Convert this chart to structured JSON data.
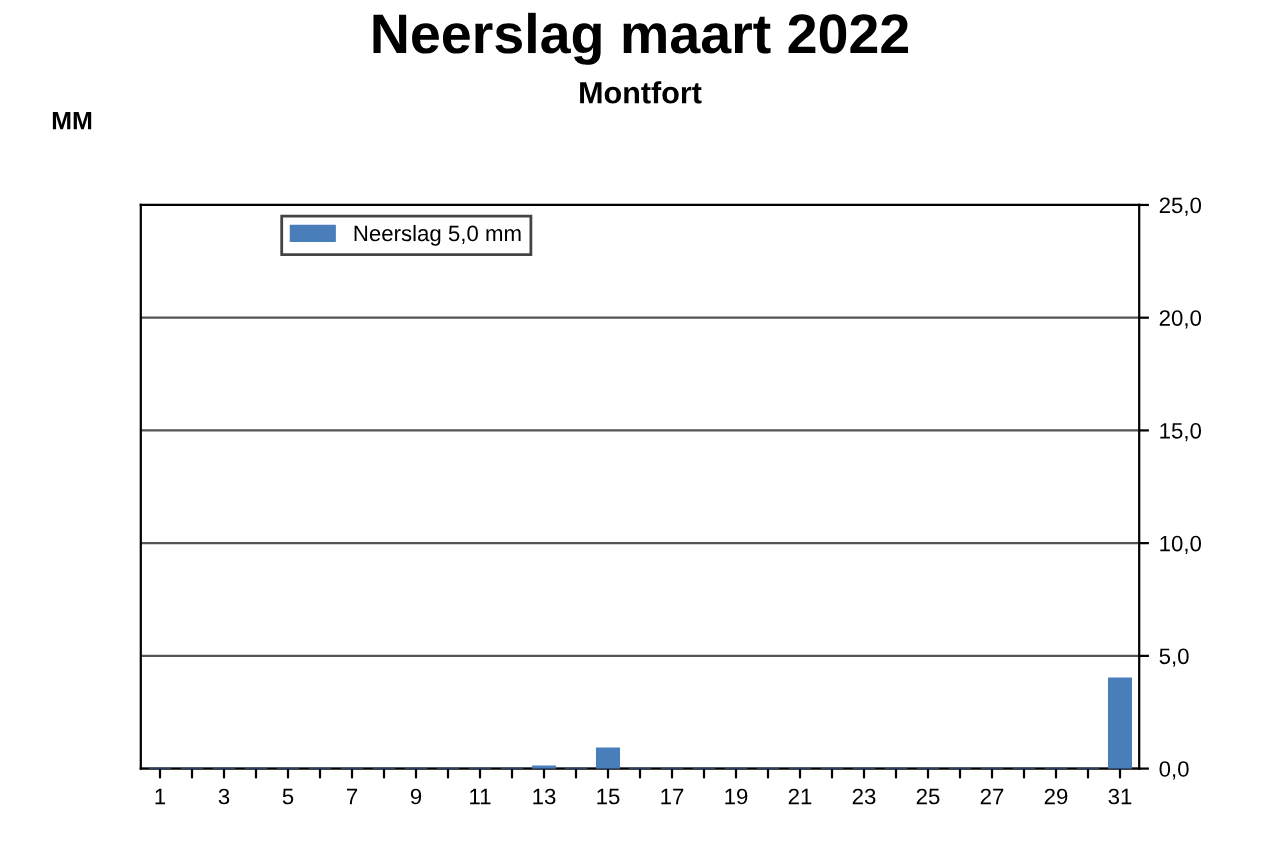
{
  "chart_data": {
    "type": "bar",
    "title": "Neerslag maart 2022",
    "subtitle": "Montfort",
    "ylabel": "MM",
    "categories": [
      "1",
      null,
      "3",
      null,
      "5",
      null,
      "7",
      null,
      "9",
      null,
      "11",
      null,
      "13",
      null,
      "15",
      null,
      "17",
      null,
      "19",
      null,
      "21",
      null,
      "23",
      null,
      "25",
      null,
      "27",
      null,
      "29",
      null,
      "31"
    ],
    "series": [
      {
        "name": "Neerslag 5,0 mm",
        "color": "#4a7ebb",
        "values": [
          0,
          0,
          0,
          0,
          0,
          0,
          0,
          0,
          0,
          0,
          0,
          0,
          0.1,
          0,
          0.9,
          0,
          0,
          0,
          0,
          0,
          0,
          0,
          0,
          0,
          0,
          0,
          0,
          0,
          0,
          0,
          4.0
        ]
      }
    ],
    "ylim": [
      0,
      25
    ],
    "yticks": [
      {
        "value": 0,
        "label": "0,0"
      },
      {
        "value": 5,
        "label": "5,0"
      },
      {
        "value": 10,
        "label": "10,0"
      },
      {
        "value": 15,
        "label": "15,0"
      },
      {
        "value": 20,
        "label": "20,0"
      },
      {
        "value": 25,
        "label": "25,0"
      }
    ],
    "grid": "y",
    "legend": "top left"
  }
}
